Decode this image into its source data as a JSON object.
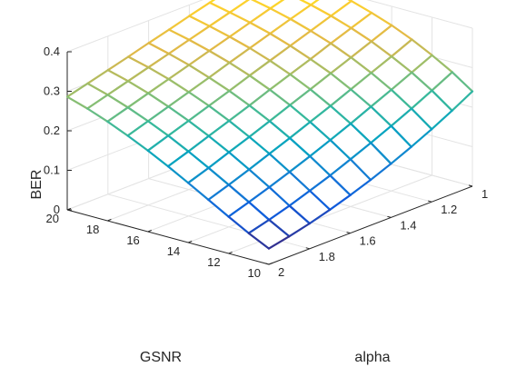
{
  "chart_data": {
    "type": "surface",
    "xlabel": "GSNR",
    "ylabel": "alpha",
    "zlabel": "BER",
    "x": [
      10,
      11,
      12,
      13,
      14,
      15,
      16,
      17,
      18,
      19,
      20
    ],
    "y": [
      1.0,
      1.1,
      1.2,
      1.3,
      1.4,
      1.5,
      1.6,
      1.7,
      1.8,
      1.9,
      2.0
    ],
    "xticks": [
      "10",
      "12",
      "14",
      "16",
      "18",
      "20"
    ],
    "yticks": [
      "1",
      "1.2",
      "1.4",
      "1.6",
      "1.8",
      "2"
    ],
    "zticks": [
      "0",
      "0.1",
      "0.2",
      "0.3",
      "0.4"
    ],
    "xlim": [
      10,
      20
    ],
    "ylim": [
      1,
      2
    ],
    "zlim": [
      0,
      0.4
    ],
    "grid": true,
    "colormap": "parula",
    "z": [
      [
        0.24,
        0.275,
        0.304,
        0.33,
        0.352,
        0.37,
        0.386,
        0.399,
        0.41,
        0.42,
        0.428
      ],
      [
        0.211,
        0.248,
        0.28,
        0.307,
        0.331,
        0.351,
        0.368,
        0.382,
        0.394,
        0.405,
        0.414
      ],
      [
        0.184,
        0.222,
        0.256,
        0.285,
        0.31,
        0.332,
        0.35,
        0.366,
        0.379,
        0.39,
        0.4
      ],
      [
        0.159,
        0.198,
        0.233,
        0.263,
        0.29,
        0.312,
        0.332,
        0.349,
        0.363,
        0.375,
        0.386
      ],
      [
        0.136,
        0.175,
        0.21,
        0.241,
        0.269,
        0.293,
        0.314,
        0.332,
        0.347,
        0.36,
        0.372
      ],
      [
        0.115,
        0.153,
        0.188,
        0.22,
        0.249,
        0.274,
        0.296,
        0.315,
        0.331,
        0.345,
        0.357
      ],
      [
        0.096,
        0.132,
        0.167,
        0.199,
        0.228,
        0.254,
        0.277,
        0.297,
        0.315,
        0.33,
        0.343
      ],
      [
        0.079,
        0.113,
        0.147,
        0.179,
        0.208,
        0.235,
        0.259,
        0.28,
        0.299,
        0.315,
        0.328
      ],
      [
        0.064,
        0.095,
        0.128,
        0.159,
        0.189,
        0.216,
        0.241,
        0.263,
        0.283,
        0.3,
        0.314
      ],
      [
        0.051,
        0.079,
        0.11,
        0.14,
        0.169,
        0.197,
        0.223,
        0.246,
        0.267,
        0.285,
        0.3
      ],
      [
        0.04,
        0.065,
        0.093,
        0.122,
        0.151,
        0.179,
        0.205,
        0.229,
        0.251,
        0.27,
        0.286
      ]
    ]
  }
}
